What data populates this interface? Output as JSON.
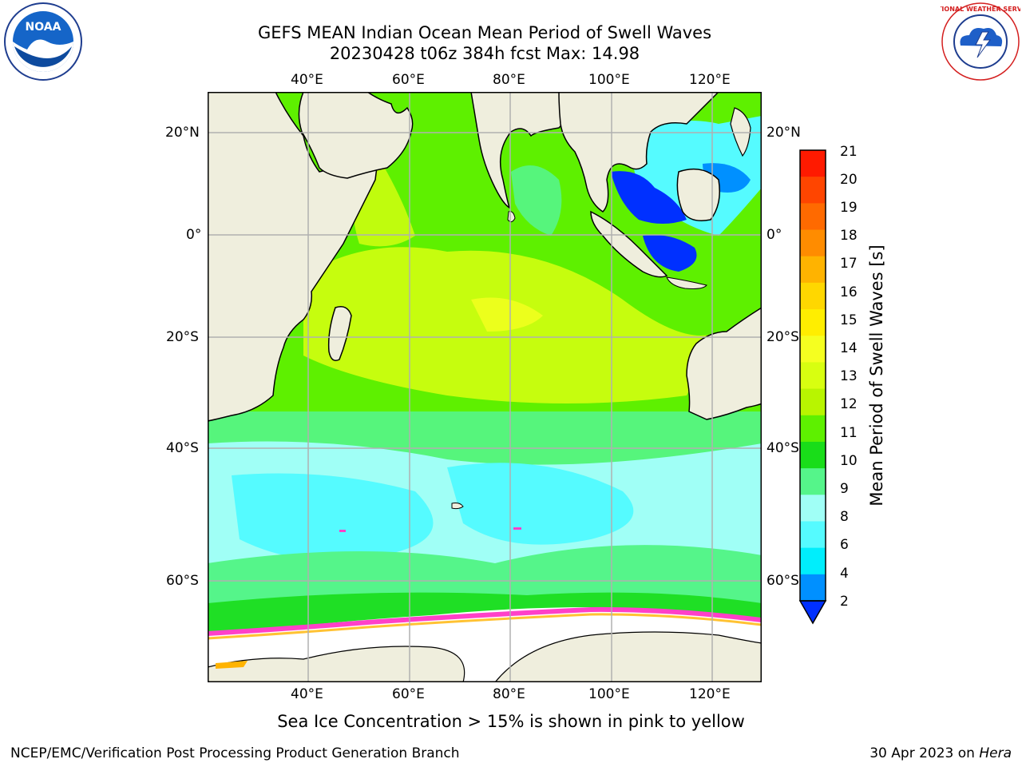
{
  "title": {
    "line1": "GEFS MEAN Indian Ocean Mean Period of Swell Waves",
    "line2": "20230428 t06z 384h fcst   Max: 14.98"
  },
  "map": {
    "lon_ticks_top": [
      "40°E",
      "60°E",
      "80°E",
      "100°E",
      "120°E"
    ],
    "lon_ticks_bottom": [
      "40°E",
      "60°E",
      "80°E",
      "100°E",
      "120°E"
    ],
    "lat_ticks_left": [
      "20°N",
      "0°",
      "20°S",
      "40°S",
      "60°S"
    ],
    "lat_ticks_right": [
      "20°N",
      "0°",
      "20°S",
      "40°S",
      "60°S"
    ],
    "land_color": "#efeedd",
    "grid_color": "#b0b0b0"
  },
  "colorbar": {
    "label": "Mean Period of Swell Waves [s]",
    "ticks": [
      "21",
      "20",
      "19",
      "18",
      "17",
      "16",
      "15",
      "14",
      "13",
      "12",
      "11",
      "10",
      "9",
      "8",
      "6",
      "4",
      "2"
    ],
    "colors": [
      "#ff1a00",
      "#ff4500",
      "#ff6a00",
      "#ff8c00",
      "#ffb300",
      "#ffd700",
      "#ffee00",
      "#f5ff20",
      "#d8ff10",
      "#b8f500",
      "#5ef000",
      "#19dd19",
      "#55f58a",
      "#a0fff6",
      "#55fbff",
      "#00eefc",
      "#0090ff",
      "#0030ff"
    ]
  },
  "sea_ice_note": "Sea Ice Concentration > 15% is shown in pink to yellow",
  "footer": {
    "left": "NCEP/EMC/Verification Post Processing Product Generation Branch",
    "right_date": "30 Apr 2023 on ",
    "right_machine": "Hera"
  },
  "logos": {
    "left_text": "NOAA",
    "right_text": "NATIONAL WEATHER SERVICE"
  }
}
